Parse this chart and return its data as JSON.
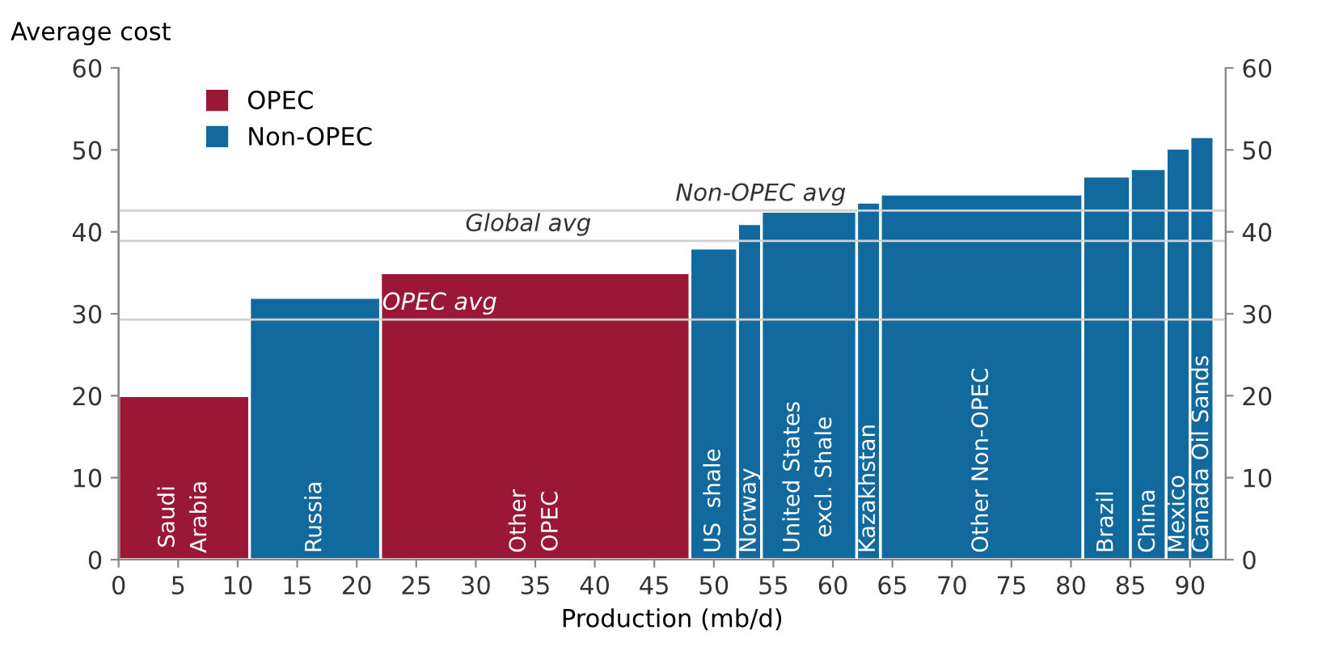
{
  "chart_data": {
    "type": "histogram",
    "ylabel": "Average cost",
    "xlabel": "Production (mb/d)",
    "bins": [
      0,
      11,
      22,
      48,
      52,
      54,
      62,
      64,
      81,
      85,
      88,
      90,
      92
    ],
    "categories": [
      "Saudi\nArabia",
      "Russia",
      "Other\nOPEC",
      "US  shale",
      "Norway",
      "United States\nexcl. Shale",
      "Kazakhstan",
      "Other Non-OPEC",
      "Brazil",
      "China",
      "Mexico",
      "Canada Oil Sands"
    ],
    "series": [
      {
        "name": "OPEC",
        "color": "#9b1736",
        "values": [
          20,
          null,
          35,
          null,
          null,
          null,
          null,
          null,
          null,
          null,
          null,
          null
        ]
      },
      {
        "name": "Non-OPEC",
        "color": "#11699e",
        "values": [
          null,
          32,
          null,
          38,
          41,
          42.5,
          43.6,
          44.6,
          46.8,
          47.7,
          50.2,
          51.6
        ]
      }
    ],
    "ref_lines": [
      {
        "axis": "y",
        "value": 42.6,
        "label": "Non-OPEC avg",
        "color": "#d0d0d0"
      },
      {
        "axis": "y",
        "value": 38.9,
        "label": "Global avg",
        "color": "#d0d0d0"
      },
      {
        "axis": "y",
        "value": 29.3,
        "label": "OPEC avg",
        "color": "#d0d0d0"
      }
    ],
    "xlim": [
      0,
      93
    ],
    "xticks": [
      0,
      5,
      10,
      15,
      20,
      25,
      30,
      35,
      40,
      45,
      50,
      55,
      60,
      65,
      70,
      75,
      80,
      85,
      90
    ],
    "ylim": [
      0,
      60
    ],
    "yticks": [
      0,
      10,
      20,
      30,
      40,
      50,
      60
    ],
    "y2lim": [
      0,
      60
    ],
    "y2ticks": [
      0,
      10,
      20,
      30,
      40,
      50,
      60
    ],
    "legend": "top left",
    "grid": false
  }
}
